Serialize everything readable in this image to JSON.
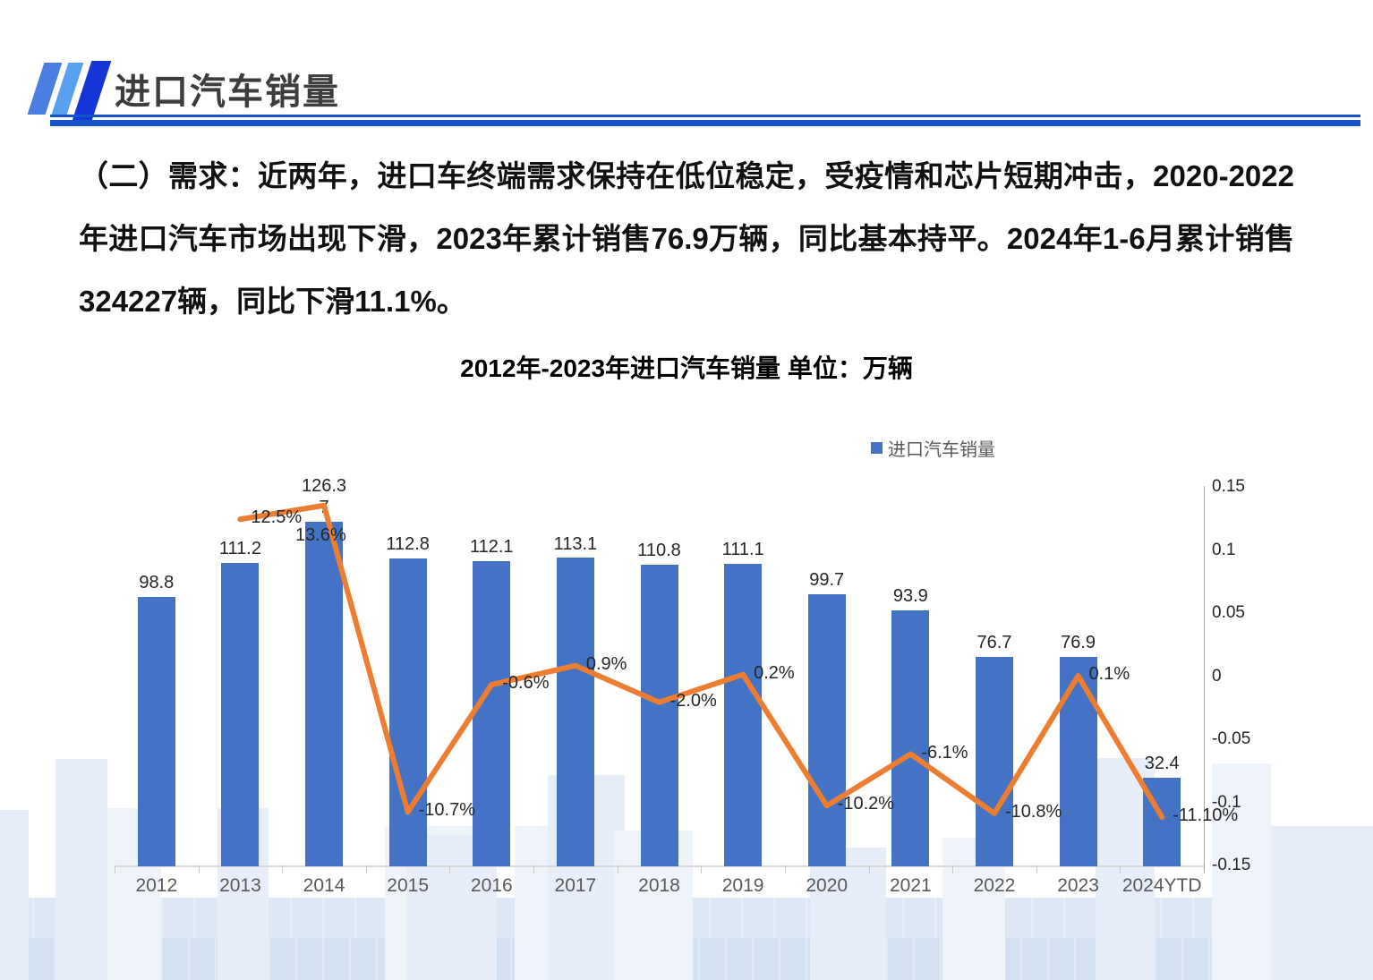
{
  "header": {
    "title": "进口汽车销量"
  },
  "body": {
    "paragraph": "（二）需求：近两年，进口车终端需求保持在低位稳定，受疫情和芯片短期冲击，2020-2022年进口汽车市场出现下滑，2023年累计销售76.9万辆，同比基本持平。2024年1-6月累计销售324227辆，同比下滑11.1%。"
  },
  "colors": {
    "bar": "#4472c4",
    "line": "#ed7d31",
    "accent_blue": "#1553c9",
    "logo_stripe_1": "#4a7ee0",
    "logo_stripe_2": "#57a0f0",
    "logo_stripe_3": "#1635d6"
  },
  "chart_data": {
    "type": "bar",
    "title": "2012年-2023年进口汽车销量  单位：万辆",
    "unit": "万辆",
    "categories": [
      "2012",
      "2013",
      "2014",
      "2015",
      "2016",
      "2017",
      "2018",
      "2019",
      "2020",
      "2021",
      "2022",
      "2023",
      "2024YTD"
    ],
    "series": [
      {
        "name": "进口汽车销量",
        "type": "bar",
        "color": "#4472c4",
        "axis": "left",
        "values": [
          98.8,
          111.2,
          126.37,
          112.8,
          112.1,
          113.1,
          110.8,
          111.1,
          99.7,
          93.9,
          76.7,
          76.9,
          32.4
        ],
        "labels": [
          "98.8",
          "111.2",
          "126.3\n7",
          "112.8",
          "112.1",
          "113.1",
          "110.8",
          "111.1",
          "99.7",
          "93.9",
          "76.7",
          "76.9",
          "32.4"
        ]
      },
      {
        "type": "line",
        "color": "#ed7d31",
        "axis": "right",
        "values": [
          null,
          0.125,
          0.136,
          -0.107,
          -0.006,
          0.009,
          -0.02,
          0.002,
          -0.102,
          -0.061,
          -0.108,
          0.001,
          -0.111
        ],
        "labels": [
          null,
          "12.5%",
          "13.6%",
          "-10.7%",
          "-0.6%",
          "0.9%",
          "-2.0%",
          "0.2%",
          "-10.2%",
          "-6.1%",
          "-10.8%",
          "0.1%",
          "-11.10%"
        ]
      }
    ],
    "right_axis": {
      "min": -0.15,
      "max": 0.15,
      "tick_values": [
        0.15,
        0.1,
        0.05,
        0,
        -0.05,
        -0.1,
        -0.15
      ],
      "tick_labels": [
        "0.15",
        "0.1",
        "0.05",
        "0",
        "-0.05",
        "-0.1",
        "-0.15"
      ]
    },
    "left_axis": {
      "visible": false
    },
    "legend": {
      "position": "top-right-inside",
      "entries": [
        "进口汽车销量"
      ]
    },
    "grid": false
  }
}
